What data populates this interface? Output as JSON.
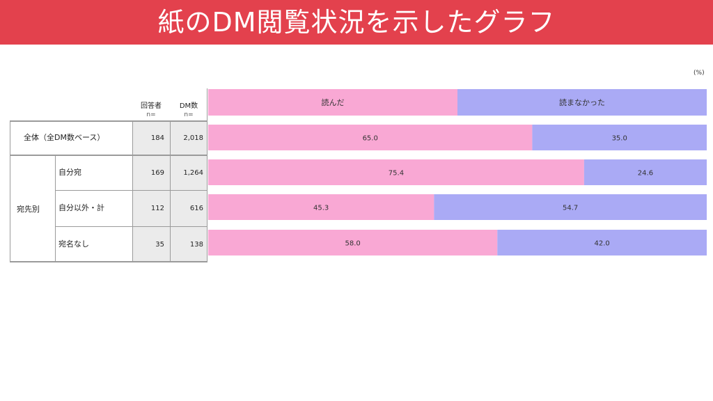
{
  "header": {
    "title": "紙のDM閲覧状況を示したグラフ"
  },
  "unit_label": "(%)",
  "columns": {
    "respondents": "回答者",
    "dm_count": "DM数",
    "n_label": "n="
  },
  "group_label": "宛先別",
  "colors": {
    "read": "#f9a8d4",
    "not_read": "#aaaaf5",
    "header_bg": "#e3414d"
  },
  "chart_data": {
    "type": "bar",
    "orientation": "horizontal",
    "stacked": true,
    "categories": [
      "全体（全DM数ベース）",
      "自分宛",
      "自分以外・計",
      "宛名なし"
    ],
    "series": [
      {
        "name": "読んだ",
        "values": [
          65.0,
          75.4,
          45.3,
          58.0
        ]
      },
      {
        "name": "読まなかった",
        "values": [
          35.0,
          24.6,
          54.7,
          42.0
        ]
      }
    ],
    "respondents": [
      184,
      169,
      112,
      35
    ],
    "dm_counts": [
      "2,018",
      "1,264",
      "616",
      "138"
    ],
    "data_labels": [
      [
        "65.0",
        "75.4",
        "45.3",
        "58.0"
      ],
      [
        "35.0",
        "24.6",
        "54.7",
        "42.0"
      ]
    ],
    "xlim": [
      0,
      100
    ]
  }
}
